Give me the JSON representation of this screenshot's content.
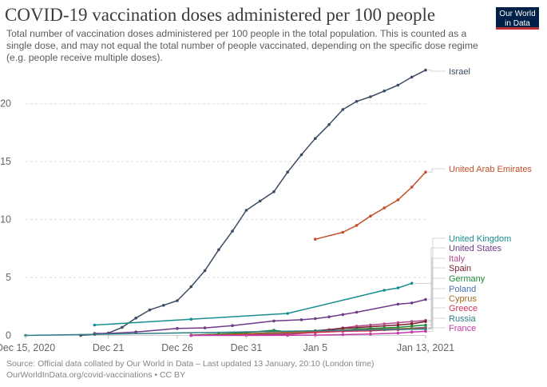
{
  "header": {
    "title": "COVID-19 vaccination doses administered per 100 people",
    "subtitle": "Total number of vaccination doses administered per 100 people in the total population. This is counted as a single dose, and may not equal the total number of people vaccinated, depending on the specific dose regime (e.g. people receive multiple doses).",
    "logo_line1": "Our World",
    "logo_line2": "in Data"
  },
  "footer": {
    "source": "Source: Official data collated by Our World in Data – Last updated 13 January, 20:10 (London time)",
    "license": "OurWorldInData.org/covid-vaccinations • CC BY"
  },
  "colors": {
    "logo_bg": "#002147",
    "logo_accent": "#be2f38"
  },
  "chart_data": {
    "type": "line",
    "title": "COVID-19 vaccination doses administered per 100 people",
    "xlabel": "",
    "ylabel": "",
    "x_range": [
      "2020-12-15",
      "2021-01-13"
    ],
    "ylim": [
      0,
      23.5
    ],
    "y_ticks": [
      0,
      5,
      10,
      15,
      20
    ],
    "x_ticks": [
      {
        "date": "2020-12-15",
        "label": "Dec 15, 2020"
      },
      {
        "date": "2020-12-21",
        "label": "Dec 21"
      },
      {
        "date": "2020-12-26",
        "label": "Dec 26"
      },
      {
        "date": "2020-12-31",
        "label": "Dec 31"
      },
      {
        "date": "2021-01-05",
        "label": "Jan 5"
      },
      {
        "date": "2021-01-13",
        "label": "Jan 13, 2021"
      }
    ],
    "grid": "horizontal-dashed",
    "legend": "right",
    "series": [
      {
        "name": "Israel",
        "color": "#3b4c63",
        "points": [
          [
            "2020-12-19",
            0.01
          ],
          [
            "2020-12-20",
            0.1
          ],
          [
            "2020-12-21",
            0.2
          ],
          [
            "2020-12-22",
            0.7
          ],
          [
            "2020-12-23",
            1.5
          ],
          [
            "2020-12-24",
            2.2
          ],
          [
            "2020-12-25",
            2.6
          ],
          [
            "2020-12-26",
            3.0
          ],
          [
            "2020-12-27",
            4.2
          ],
          [
            "2020-12-28",
            5.6
          ],
          [
            "2020-12-29",
            7.4
          ],
          [
            "2020-12-30",
            9.0
          ],
          [
            "2020-12-31",
            10.8
          ],
          [
            "2021-01-01",
            11.6
          ],
          [
            "2021-01-02",
            12.4
          ],
          [
            "2021-01-03",
            14.1
          ],
          [
            "2021-01-04",
            15.6
          ],
          [
            "2021-01-05",
            17.0
          ],
          [
            "2021-01-06",
            18.2
          ],
          [
            "2021-01-07",
            19.5
          ],
          [
            "2021-01-08",
            20.2
          ],
          [
            "2021-01-09",
            20.6
          ],
          [
            "2021-01-10",
            21.1
          ],
          [
            "2021-01-11",
            21.6
          ],
          [
            "2021-01-12",
            22.3
          ],
          [
            "2021-01-13",
            22.9
          ]
        ]
      },
      {
        "name": "United Arab Emirates",
        "color": "#c15028",
        "points": [
          [
            "2021-01-05",
            8.3
          ],
          [
            "2021-01-07",
            8.9
          ],
          [
            "2021-01-08",
            9.5
          ],
          [
            "2021-01-09",
            10.3
          ],
          [
            "2021-01-10",
            11.0
          ],
          [
            "2021-01-11",
            11.7
          ],
          [
            "2021-01-12",
            12.8
          ],
          [
            "2021-01-13",
            14.1
          ]
        ]
      },
      {
        "name": "United Kingdom",
        "color": "#188d8f",
        "points": [
          [
            "2020-12-20",
            0.9
          ],
          [
            "2020-12-27",
            1.4
          ],
          [
            "2021-01-03",
            1.9
          ],
          [
            "2021-01-10",
            3.9
          ],
          [
            "2021-01-11",
            4.1
          ],
          [
            "2021-01-12",
            4.5
          ]
        ]
      },
      {
        "name": "United States",
        "color": "#6e3b88",
        "points": [
          [
            "2020-12-20",
            0.17
          ],
          [
            "2020-12-21",
            0.17
          ],
          [
            "2020-12-23",
            0.3
          ],
          [
            "2020-12-26",
            0.6
          ],
          [
            "2020-12-28",
            0.65
          ],
          [
            "2020-12-30",
            0.85
          ],
          [
            "2021-01-02",
            1.25
          ],
          [
            "2021-01-04",
            1.35
          ],
          [
            "2021-01-05",
            1.45
          ],
          [
            "2021-01-06",
            1.6
          ],
          [
            "2021-01-07",
            1.8
          ],
          [
            "2021-01-08",
            2.0
          ],
          [
            "2021-01-11",
            2.7
          ],
          [
            "2021-01-12",
            2.8
          ],
          [
            "2021-01-13",
            3.1
          ]
        ]
      },
      {
        "name": "Italy",
        "color": "#b54a8a",
        "points": [
          [
            "2020-12-27",
            0.01
          ],
          [
            "2020-12-31",
            0.1
          ],
          [
            "2021-01-03",
            0.2
          ],
          [
            "2021-01-05",
            0.4
          ],
          [
            "2021-01-06",
            0.5
          ],
          [
            "2021-01-07",
            0.65
          ],
          [
            "2021-01-08",
            0.8
          ],
          [
            "2021-01-09",
            0.9
          ],
          [
            "2021-01-10",
            1.0
          ],
          [
            "2021-01-11",
            1.1
          ],
          [
            "2021-01-12",
            1.2
          ],
          [
            "2021-01-13",
            1.3
          ]
        ]
      },
      {
        "name": "Spain",
        "color": "#7a1f2e",
        "points": [
          [
            "2020-12-27",
            0.01
          ],
          [
            "2021-01-04",
            0.3
          ],
          [
            "2021-01-07",
            0.6
          ],
          [
            "2021-01-11",
            0.9
          ],
          [
            "2021-01-12",
            1.0
          ],
          [
            "2021-01-13",
            1.2
          ]
        ]
      },
      {
        "name": "Germany",
        "color": "#1c8a3d",
        "points": [
          [
            "2020-12-27",
            0.03
          ],
          [
            "2020-12-29",
            0.12
          ],
          [
            "2020-12-31",
            0.25
          ],
          [
            "2021-01-02",
            0.45
          ],
          [
            "2021-01-03",
            0.3
          ],
          [
            "2021-01-05",
            0.4
          ],
          [
            "2021-01-07",
            0.45
          ],
          [
            "2021-01-08",
            0.55
          ],
          [
            "2021-01-09",
            0.6
          ],
          [
            "2021-01-10",
            0.65
          ],
          [
            "2021-01-11",
            0.7
          ],
          [
            "2021-01-12",
            0.8
          ],
          [
            "2021-01-13",
            0.9
          ]
        ]
      },
      {
        "name": "Poland",
        "color": "#4a6fae",
        "points": [
          [
            "2020-12-27",
            0.01
          ],
          [
            "2021-01-03",
            0.2
          ],
          [
            "2021-01-05",
            0.3
          ],
          [
            "2021-01-08",
            0.45
          ],
          [
            "2021-01-11",
            0.55
          ],
          [
            "2021-01-13",
            0.7
          ]
        ]
      },
      {
        "name": "Cyprus",
        "color": "#a36a1d",
        "points": [
          [
            "2020-12-27",
            0.01
          ],
          [
            "2021-01-03",
            0.25
          ],
          [
            "2021-01-07",
            0.45
          ],
          [
            "2021-01-10",
            0.55
          ],
          [
            "2021-01-12",
            0.6
          ],
          [
            "2021-01-13",
            0.65
          ]
        ]
      },
      {
        "name": "Greece",
        "color": "#d1335b",
        "points": [
          [
            "2020-12-27",
            0.02
          ],
          [
            "2020-12-31",
            0.04
          ],
          [
            "2021-01-03",
            0.1
          ],
          [
            "2021-01-05",
            0.25
          ],
          [
            "2021-01-07",
            0.35
          ],
          [
            "2021-01-09",
            0.4
          ],
          [
            "2021-01-11",
            0.5
          ],
          [
            "2021-01-13",
            0.6
          ]
        ]
      },
      {
        "name": "Russia",
        "color": "#2e7f86",
        "points": [
          [
            "2020-12-15",
            0.0
          ],
          [
            "2021-01-10",
            0.5
          ],
          [
            "2021-01-13",
            0.55
          ]
        ]
      },
      {
        "name": "France",
        "color": "#c33aa8",
        "points": [
          [
            "2020-12-27",
            0.0
          ],
          [
            "2020-12-31",
            0.0
          ],
          [
            "2021-01-03",
            0.01
          ],
          [
            "2021-01-05",
            0.03
          ],
          [
            "2021-01-07",
            0.07
          ],
          [
            "2021-01-09",
            0.12
          ],
          [
            "2021-01-11",
            0.2
          ],
          [
            "2021-01-12",
            0.3
          ],
          [
            "2021-01-13",
            0.35
          ]
        ]
      }
    ]
  }
}
